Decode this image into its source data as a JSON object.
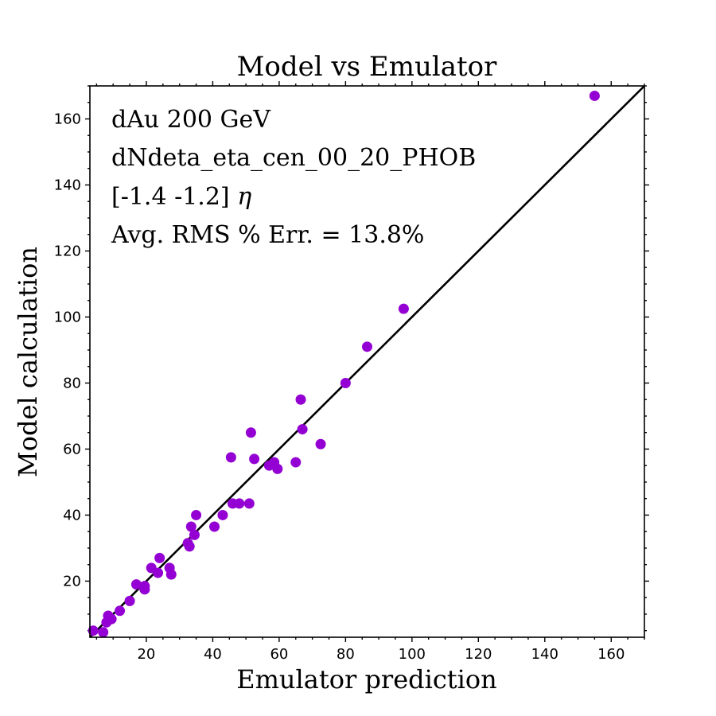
{
  "chart_data": {
    "type": "scatter",
    "title": "Model vs Emulator",
    "xlabel": "Emulator prediction",
    "ylabel": "Model calculation",
    "xlim": [
      3,
      170
    ],
    "ylim": [
      3,
      170
    ],
    "xticks": [
      20,
      40,
      60,
      80,
      100,
      120,
      140,
      160
    ],
    "yticks": [
      20,
      40,
      60,
      80,
      100,
      120,
      140,
      160
    ],
    "reference_line": "y = x",
    "annotations": [
      "dAu 200 GeV",
      "dNdeta_eta_cen_00_20_PHOB",
      "[-1.4 -1.2]",
      "Avg. RMS % Err. = 13.8%"
    ],
    "eta_symbol": "η",
    "point_color": "#9400D3",
    "line_color": "#000000",
    "points": [
      {
        "x": 4,
        "y": 5
      },
      {
        "x": 7,
        "y": 4.5
      },
      {
        "x": 8,
        "y": 7.5
      },
      {
        "x": 8.5,
        "y": 9.5
      },
      {
        "x": 9.5,
        "y": 8.5
      },
      {
        "x": 12,
        "y": 11
      },
      {
        "x": 15,
        "y": 14
      },
      {
        "x": 17,
        "y": 19
      },
      {
        "x": 19.5,
        "y": 17.5
      },
      {
        "x": 19.5,
        "y": 18.5
      },
      {
        "x": 21.5,
        "y": 24
      },
      {
        "x": 23.5,
        "y": 22.5
      },
      {
        "x": 24,
        "y": 27
      },
      {
        "x": 27,
        "y": 24
      },
      {
        "x": 27.5,
        "y": 22
      },
      {
        "x": 32.5,
        "y": 31.5
      },
      {
        "x": 33,
        "y": 30.5
      },
      {
        "x": 33.5,
        "y": 36.5
      },
      {
        "x": 34.5,
        "y": 34
      },
      {
        "x": 35,
        "y": 40
      },
      {
        "x": 40.5,
        "y": 36.5
      },
      {
        "x": 43,
        "y": 40
      },
      {
        "x": 45.5,
        "y": 57.5
      },
      {
        "x": 46,
        "y": 43.5
      },
      {
        "x": 48,
        "y": 43.5
      },
      {
        "x": 51,
        "y": 43.5
      },
      {
        "x": 51.5,
        "y": 65
      },
      {
        "x": 52.5,
        "y": 57
      },
      {
        "x": 57,
        "y": 55
      },
      {
        "x": 58.5,
        "y": 56
      },
      {
        "x": 59.5,
        "y": 54
      },
      {
        "x": 65,
        "y": 56
      },
      {
        "x": 66.5,
        "y": 75
      },
      {
        "x": 67,
        "y": 66
      },
      {
        "x": 72.5,
        "y": 61.5
      },
      {
        "x": 80,
        "y": 80
      },
      {
        "x": 86.5,
        "y": 91
      },
      {
        "x": 97.5,
        "y": 102.5
      },
      {
        "x": 155,
        "y": 167
      }
    ]
  }
}
